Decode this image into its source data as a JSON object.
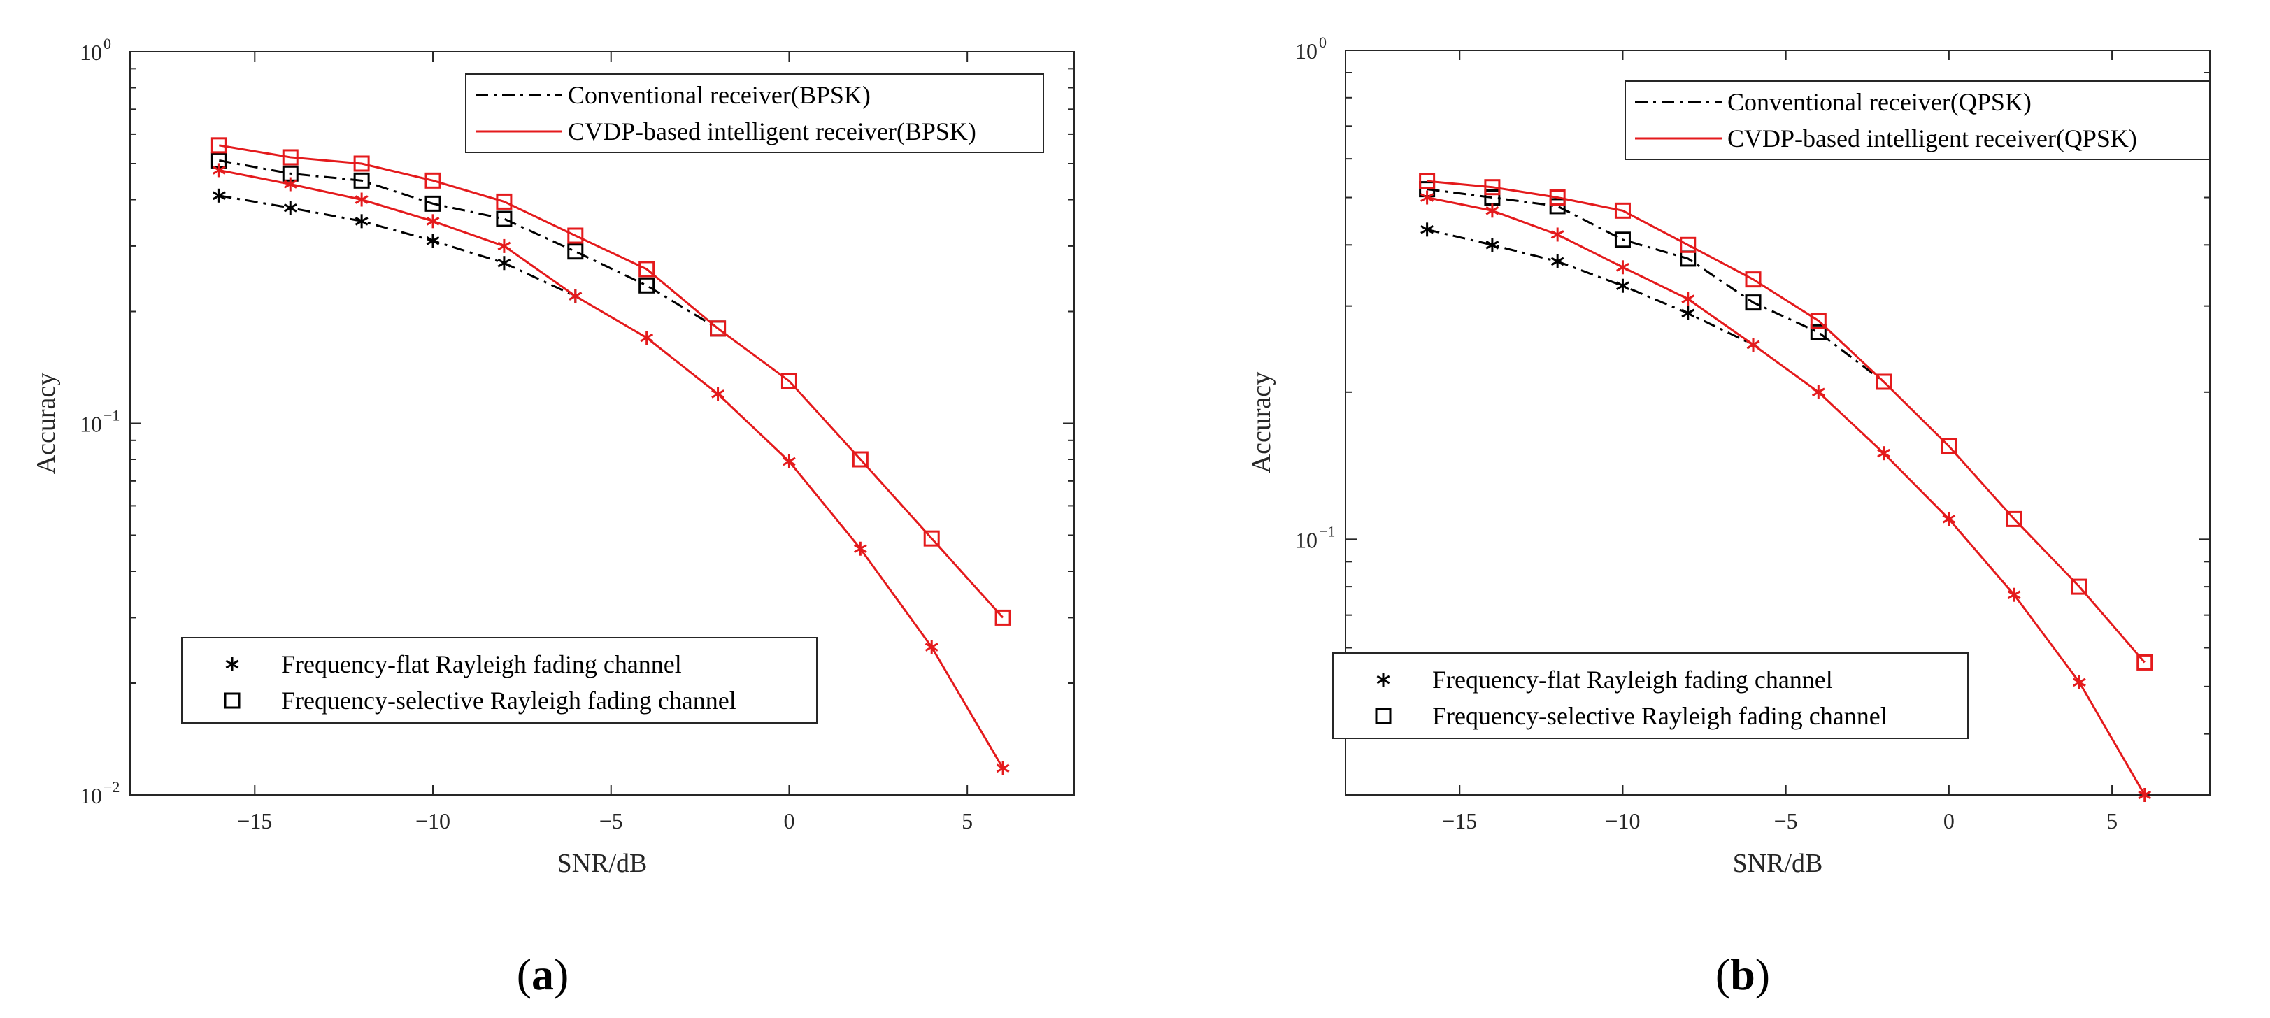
{
  "chart_data": [
    {
      "id": "a",
      "type": "line",
      "caption": {
        "open": "(",
        "letter": "a",
        "close": ")"
      },
      "xlabel": "SNR/dB",
      "ylabel": "Accuracy",
      "yscale": "log",
      "xlim": [
        -18.5,
        8.0
      ],
      "ylim": [
        0.01,
        1.0
      ],
      "xticks": [
        -15,
        -10,
        -5,
        0,
        5
      ],
      "xtick_labels": [
        "−15",
        "−10",
        "−5",
        "0",
        "5"
      ],
      "yticks": [
        {
          "value": 1.0,
          "base": "10",
          "exp": "0"
        },
        {
          "value": 0.1,
          "base": "10",
          "exp": "−1"
        },
        {
          "value": 0.01,
          "base": "10",
          "exp": "−2"
        }
      ],
      "legend_lines": {
        "position": "top-right",
        "entries": [
          {
            "label": "Conventional receiver(BPSK)",
            "style": "dashdot",
            "color": "#000000"
          },
          {
            "label": "CVDP-based intelligent receiver(BPSK)",
            "style": "solid",
            "color": "#e41a1c"
          }
        ]
      },
      "legend_markers": {
        "position": "bottom-left",
        "entries": [
          {
            "label": "Frequency-flat Rayleigh fading channel",
            "marker": "asterisk"
          },
          {
            "label": "Frequency-selective Rayleigh fading channel",
            "marker": "square"
          }
        ]
      },
      "series": [
        {
          "name": "Conventional receiver, frequency-flat",
          "color": "#000000",
          "dash": "dashdot",
          "marker": "asterisk",
          "x": [
            -16,
            -14,
            -12,
            -10,
            -8,
            -6
          ],
          "values": [
            0.41,
            0.38,
            0.35,
            0.31,
            0.27,
            0.22
          ]
        },
        {
          "name": "Conventional receiver, frequency-selective",
          "color": "#000000",
          "dash": "dashdot",
          "marker": "square",
          "x": [
            -16,
            -14,
            -12,
            -10,
            -8,
            -6,
            -4,
            -2
          ],
          "values": [
            0.51,
            0.47,
            0.45,
            0.39,
            0.355,
            0.29,
            0.235,
            0.18
          ]
        },
        {
          "name": "CVDP-based intelligent receiver, frequency-flat",
          "color": "#e41a1c",
          "dash": "solid",
          "marker": "asterisk",
          "x": [
            -16,
            -14,
            -12,
            -10,
            -8,
            -6,
            -4,
            -2,
            0,
            2,
            4,
            6
          ],
          "values": [
            0.48,
            0.44,
            0.4,
            0.35,
            0.3,
            0.22,
            0.17,
            0.12,
            0.079,
            0.046,
            0.025,
            0.0118
          ]
        },
        {
          "name": "CVDP-based intelligent receiver, frequency-selective",
          "color": "#e41a1c",
          "dash": "solid",
          "marker": "square",
          "x": [
            -16,
            -14,
            -12,
            -10,
            -8,
            -6,
            -4,
            -2,
            0,
            2,
            4,
            6
          ],
          "values": [
            0.56,
            0.52,
            0.5,
            0.45,
            0.395,
            0.32,
            0.26,
            0.18,
            0.13,
            0.08,
            0.049,
            0.03
          ]
        }
      ]
    },
    {
      "id": "b",
      "type": "line",
      "caption": {
        "open": "(",
        "letter": "b",
        "close": ")"
      },
      "xlabel": "SNR/dB",
      "ylabel": "Accuracy",
      "yscale": "log",
      "xlim": [
        -18.5,
        8.0
      ],
      "ylim": [
        0.03,
        1.0
      ],
      "xticks": [
        -15,
        -10,
        -5,
        0,
        5
      ],
      "xtick_labels": [
        "−15",
        "−10",
        "−5",
        "0",
        "5"
      ],
      "yticks": [
        {
          "value": 1.0,
          "base": "10",
          "exp": "0"
        },
        {
          "value": 0.1,
          "base": "10",
          "exp": "−1"
        }
      ],
      "legend_lines": {
        "position": "top-right",
        "entries": [
          {
            "label": "Conventional receiver(QPSK)",
            "style": "dashdot",
            "color": "#000000"
          },
          {
            "label": "CVDP-based intelligent receiver(QPSK)",
            "style": "solid",
            "color": "#e41a1c"
          }
        ]
      },
      "legend_markers": {
        "position": "bottom-left",
        "entries": [
          {
            "label": "Frequency-flat Rayleigh fading channel",
            "marker": "asterisk"
          },
          {
            "label": "Frequency-selective Rayleigh fading channel",
            "marker": "square"
          }
        ]
      },
      "series": [
        {
          "name": "Conventional receiver, frequency-flat",
          "color": "#000000",
          "dash": "dashdot",
          "marker": "asterisk",
          "x": [
            -16,
            -14,
            -12,
            -10,
            -8,
            -6
          ],
          "values": [
            0.43,
            0.4,
            0.37,
            0.33,
            0.29,
            0.25
          ]
        },
        {
          "name": "Conventional receiver, frequency-selective",
          "color": "#000000",
          "dash": "dashdot",
          "marker": "square",
          "x": [
            -16,
            -14,
            -12,
            -10,
            -8,
            -6,
            -4,
            -2
          ],
          "values": [
            0.52,
            0.5,
            0.48,
            0.41,
            0.375,
            0.305,
            0.265,
            0.21
          ]
        },
        {
          "name": "CVDP-based intelligent receiver, frequency-flat",
          "color": "#e41a1c",
          "dash": "solid",
          "marker": "asterisk",
          "x": [
            -16,
            -14,
            -12,
            -10,
            -8,
            -6,
            -4,
            -2,
            0,
            2,
            4,
            6
          ],
          "values": [
            0.5,
            0.47,
            0.42,
            0.36,
            0.31,
            0.25,
            0.2,
            0.15,
            0.11,
            0.077,
            0.051,
            0.03
          ]
        },
        {
          "name": "CVDP-based intelligent receiver, frequency-selective",
          "color": "#e41a1c",
          "dash": "solid",
          "marker": "square",
          "x": [
            -16,
            -14,
            -12,
            -10,
            -8,
            -6,
            -4,
            -2,
            0,
            2,
            4,
            6
          ],
          "values": [
            0.54,
            0.525,
            0.5,
            0.47,
            0.4,
            0.34,
            0.28,
            0.21,
            0.155,
            0.11,
            0.08,
            0.056
          ]
        }
      ]
    }
  ]
}
